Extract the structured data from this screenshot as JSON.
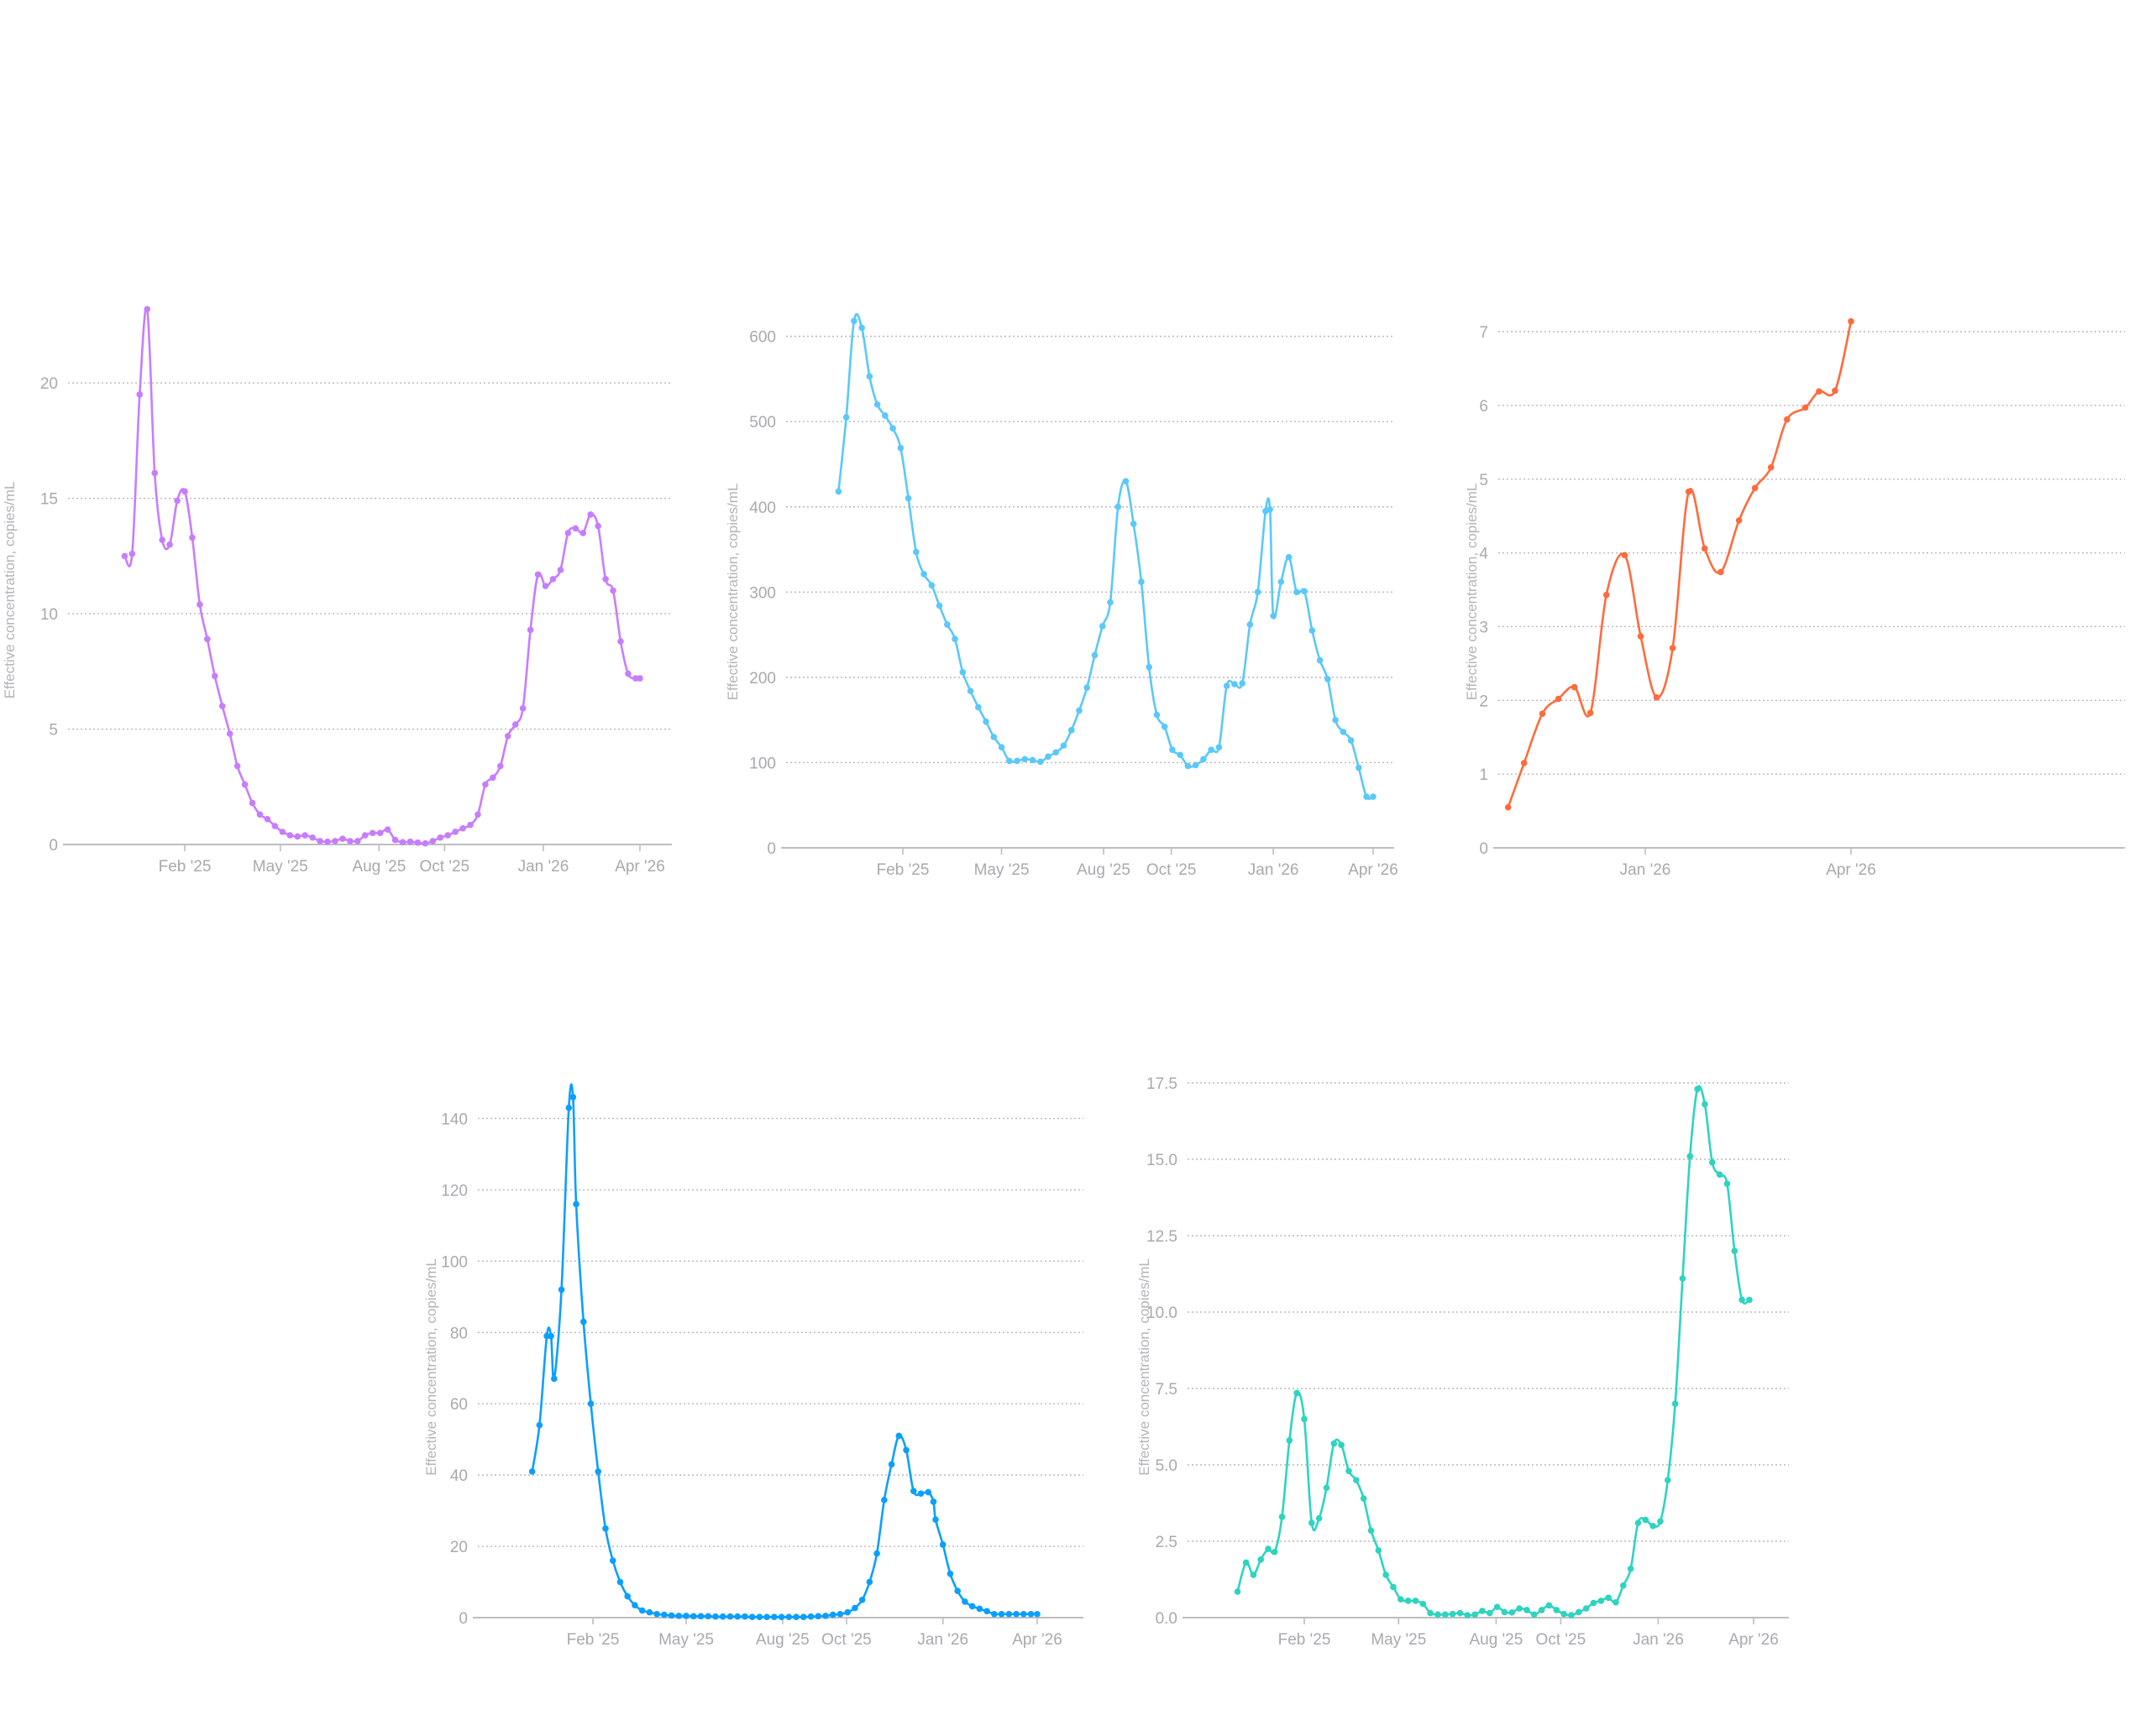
{
  "chart_data": [
    {
      "id": "chart-purple",
      "type": "line",
      "title": "",
      "ylabel": "Effective concentration, copies/mL",
      "xlabel": "",
      "color": "#c77dff",
      "x_unit": "days since 2025-01-01",
      "ylim": [
        0,
        23.5
      ],
      "yticks": [
        0,
        5,
        10,
        15,
        20
      ],
      "ytick_labels": [
        "0",
        "5",
        "10",
        "15",
        "20"
      ],
      "xticks": [
        31,
        120,
        212,
        273,
        365,
        455
      ],
      "xtick_labels": [
        "Feb '25",
        "May '25",
        "Aug '25",
        "Oct '25",
        "Jan '26",
        "Apr '26"
      ],
      "xlim": [
        -40,
        470
      ],
      "grid": true,
      "x": [
        -25,
        -18,
        -11,
        -4,
        3,
        10,
        17,
        24,
        31,
        38,
        45,
        52,
        59,
        66,
        73,
        80,
        87,
        94,
        101,
        108,
        115,
        122,
        129,
        136,
        143,
        150,
        157,
        164,
        171,
        178,
        185,
        192,
        199,
        206,
        213,
        220,
        227,
        234,
        241,
        248,
        255,
        262,
        269,
        276,
        283,
        290,
        297,
        304,
        311,
        318,
        325,
        332,
        339,
        346,
        353,
        360,
        367,
        374,
        381,
        388,
        395,
        402,
        409,
        416,
        423,
        430,
        437,
        444,
        451,
        455
      ],
      "y": [
        12.5,
        12.6,
        19.5,
        23.2,
        16.1,
        13.2,
        13.0,
        14.9,
        15.3,
        13.3,
        10.4,
        8.9,
        7.3,
        6.0,
        4.8,
        3.4,
        2.6,
        1.8,
        1.3,
        1.1,
        0.8,
        0.55,
        0.4,
        0.35,
        0.4,
        0.3,
        0.15,
        0.12,
        0.15,
        0.25,
        0.15,
        0.15,
        0.4,
        0.5,
        0.5,
        0.65,
        0.2,
        0.1,
        0.12,
        0.08,
        0.05,
        0.15,
        0.3,
        0.4,
        0.55,
        0.7,
        0.85,
        1.3,
        2.6,
        2.9,
        3.4,
        4.7,
        5.2,
        5.9,
        9.3,
        11.7,
        11.2,
        11.5,
        11.9,
        13.5,
        13.7,
        13.5,
        14.3,
        13.8,
        11.5,
        11.0,
        8.8,
        7.4,
        7.2,
        7.2
      ]
    },
    {
      "id": "chart-lightblue",
      "type": "line",
      "title": "",
      "ylabel": "Effective concentration, copies/mL",
      "xlabel": "",
      "color": "#5ac8fa",
      "x_unit": "days since 2025-01-01",
      "ylim": [
        0,
        640
      ],
      "yticks": [
        0,
        100,
        200,
        300,
        400,
        500,
        600
      ],
      "ytick_labels": [
        "0",
        "100",
        "200",
        "300",
        "400",
        "500",
        "600"
      ],
      "xticks": [
        31,
        120,
        212,
        273,
        365,
        455
      ],
      "xtick_labels": [
        "Feb '25",
        "May '25",
        "Aug '25",
        "Oct '25",
        "Jan '26",
        "Apr '26"
      ],
      "xlim": [
        -40,
        470
      ],
      "grid": true,
      "x": [
        -27,
        -20,
        -13,
        -6,
        1,
        8,
        15,
        22,
        29,
        36,
        43,
        50,
        57,
        64,
        71,
        78,
        85,
        92,
        99,
        106,
        113,
        120,
        127,
        134,
        141,
        148,
        155,
        162,
        169,
        176,
        183,
        190,
        197,
        204,
        211,
        218,
        225,
        232,
        239,
        246,
        253,
        260,
        267,
        274,
        281,
        288,
        295,
        302,
        309,
        316,
        323,
        330,
        337,
        344,
        351,
        358,
        362,
        365,
        372,
        379,
        386,
        393,
        400,
        407,
        414,
        421,
        428,
        435,
        442,
        449,
        455
      ],
      "y": [
        418,
        505,
        618,
        610,
        553,
        520,
        507,
        492,
        469,
        410,
        347,
        321,
        308,
        284,
        262,
        245,
        206,
        184,
        165,
        148,
        130,
        118,
        102,
        102,
        104,
        103,
        101,
        107,
        112,
        120,
        138,
        161,
        188,
        226,
        260,
        288,
        400,
        430,
        380,
        312,
        212,
        156,
        142,
        115,
        109,
        96,
        97,
        104,
        115,
        118,
        190,
        192,
        193,
        262,
        300,
        395,
        397,
        272,
        312,
        341,
        300,
        301,
        255,
        220,
        198,
        150,
        136,
        126,
        94,
        60,
        60
      ]
    },
    {
      "id": "chart-orange",
      "type": "line",
      "title": "",
      "ylabel": "Effective concentration, copies/mL",
      "xlabel": "",
      "color": "#ff6b3d",
      "x_unit": "days since 2025-01-01",
      "ylim": [
        0,
        7.4
      ],
      "yticks": [
        0,
        1,
        2,
        3,
        4,
        5,
        6,
        7
      ],
      "ytick_labels": [
        "0",
        "1",
        "2",
        "3",
        "4",
        "5",
        "6",
        "7"
      ],
      "xticks": [
        365,
        455
      ],
      "xtick_labels": [
        "Jan '26",
        "Apr '26"
      ],
      "xlim": [
        296,
        473
      ],
      "grid": true,
      "x": [
        305,
        312,
        320,
        327,
        334,
        341,
        348,
        356,
        363,
        370,
        377,
        384,
        391,
        398,
        406,
        413,
        420,
        427,
        435,
        441,
        448,
        455
      ],
      "y": [
        0.55,
        1.15,
        1.82,
        2.02,
        2.18,
        1.83,
        3.43,
        3.97,
        2.87,
        2.04,
        2.71,
        4.83,
        4.06,
        3.74,
        4.44,
        4.88,
        5.16,
        5.81,
        5.97,
        6.19,
        6.2,
        7.14
      ]
    },
    {
      "id": "chart-blue",
      "type": "line",
      "title": "",
      "ylabel": "Effective concentration, copies/mL",
      "xlabel": "",
      "color": "#0a9fff",
      "x_unit": "days since 2025-01-01",
      "ylim": [
        0,
        150
      ],
      "yticks": [
        0,
        20,
        40,
        60,
        80,
        100,
        120,
        140
      ],
      "ytick_labels": [
        "0",
        "20",
        "40",
        "60",
        "80",
        "100",
        "120",
        "140"
      ],
      "xticks": [
        31,
        120,
        212,
        273,
        365,
        455
      ],
      "xtick_labels": [
        "Feb '25",
        "May '25",
        "Aug '25",
        "Oct '25",
        "Jan '26",
        "Apr '26"
      ],
      "xlim": [
        -40,
        470
      ],
      "grid": true,
      "x": [
        -27,
        -20,
        -13,
        -9,
        -6,
        1,
        8,
        12,
        15,
        22,
        29,
        36,
        43,
        50,
        57,
        64,
        71,
        78,
        85,
        92,
        99,
        106,
        113,
        120,
        127,
        134,
        141,
        148,
        155,
        162,
        169,
        176,
        183,
        190,
        197,
        204,
        211,
        218,
        225,
        232,
        239,
        246,
        253,
        260,
        267,
        274,
        281,
        288,
        295,
        302,
        309,
        316,
        323,
        330,
        337,
        344,
        351,
        356,
        358,
        365,
        372,
        379,
        386,
        393,
        400,
        407,
        414,
        421,
        428,
        435,
        442,
        449,
        455
      ],
      "y": [
        41,
        54,
        79,
        79,
        67,
        92,
        143,
        146,
        116,
        83,
        60,
        41,
        25,
        16,
        10,
        6,
        3.5,
        2,
        1.5,
        1,
        0.8,
        0.6,
        0.5,
        0.5,
        0.4,
        0.4,
        0.4,
        0.3,
        0.3,
        0.3,
        0.3,
        0.3,
        0.2,
        0.2,
        0.2,
        0.2,
        0.2,
        0.2,
        0.2,
        0.2,
        0.3,
        0.4,
        0.5,
        0.8,
        1,
        1.5,
        2.7,
        5,
        10,
        18,
        33,
        43,
        51,
        47,
        35.5,
        34.8,
        35.2,
        32.5,
        27.5,
        20.5,
        12.3,
        7.5,
        4.5,
        3.2,
        2.5,
        1.8,
        1,
        1,
        1,
        1,
        1,
        1,
        1
      ]
    },
    {
      "id": "chart-teal",
      "type": "line",
      "title": "",
      "ylabel": "Effective concentration, copies/mL",
      "xlabel": "",
      "color": "#2dd4bf",
      "x_unit": "days since 2025-01-01",
      "ylim": [
        0,
        17.5
      ],
      "yticks": [
        0,
        2.5,
        5,
        7.5,
        10,
        12.5,
        15,
        17.5
      ],
      "ytick_labels": [
        "0.0",
        "2.5",
        "5.0",
        "7.5",
        "10.0",
        "12.5",
        "15.0",
        "17.5"
      ],
      "xticks": [
        31,
        120,
        212,
        273,
        365,
        455
      ],
      "xtick_labels": [
        "Feb '25",
        "May '25",
        "Aug '25",
        "Oct '25",
        "Jan '26",
        "Apr '26"
      ],
      "xlim": [
        -45,
        470
      ],
      "grid": true,
      "x": [
        -32,
        -24,
        -17,
        -10,
        -3,
        3,
        10,
        17,
        24,
        31,
        38,
        45,
        52,
        59,
        66,
        73,
        80,
        87,
        94,
        101,
        108,
        115,
        122,
        129,
        136,
        143,
        150,
        157,
        164,
        171,
        178,
        185,
        192,
        199,
        206,
        213,
        220,
        227,
        234,
        241,
        248,
        255,
        262,
        269,
        276,
        283,
        290,
        297,
        304,
        311,
        318,
        325,
        332,
        339,
        346,
        353,
        360,
        367,
        374,
        381,
        388,
        395,
        402,
        409,
        416,
        423,
        430,
        437,
        444,
        451
      ],
      "y": [
        0.85,
        1.8,
        1.4,
        1.9,
        2.25,
        2.15,
        3.3,
        5.8,
        7.35,
        6.5,
        3.1,
        3.25,
        4.25,
        5.7,
        5.65,
        4.8,
        4.5,
        3.9,
        2.85,
        2.2,
        1.4,
        1.0,
        0.6,
        0.55,
        0.55,
        0.45,
        0.15,
        0.1,
        0.1,
        0.12,
        0.15,
        0.08,
        0.1,
        0.22,
        0.15,
        0.35,
        0.18,
        0.17,
        0.3,
        0.25,
        0.1,
        0.25,
        0.4,
        0.25,
        0.12,
        0.08,
        0.18,
        0.3,
        0.48,
        0.55,
        0.65,
        0.5,
        1.05,
        1.6,
        3.1,
        3.2,
        3.0,
        3.15,
        4.5,
        7.0,
        11.1,
        15.1,
        17.3,
        16.8,
        14.9,
        14.5,
        14.2,
        12.0,
        10.4,
        10.4
      ]
    }
  ]
}
